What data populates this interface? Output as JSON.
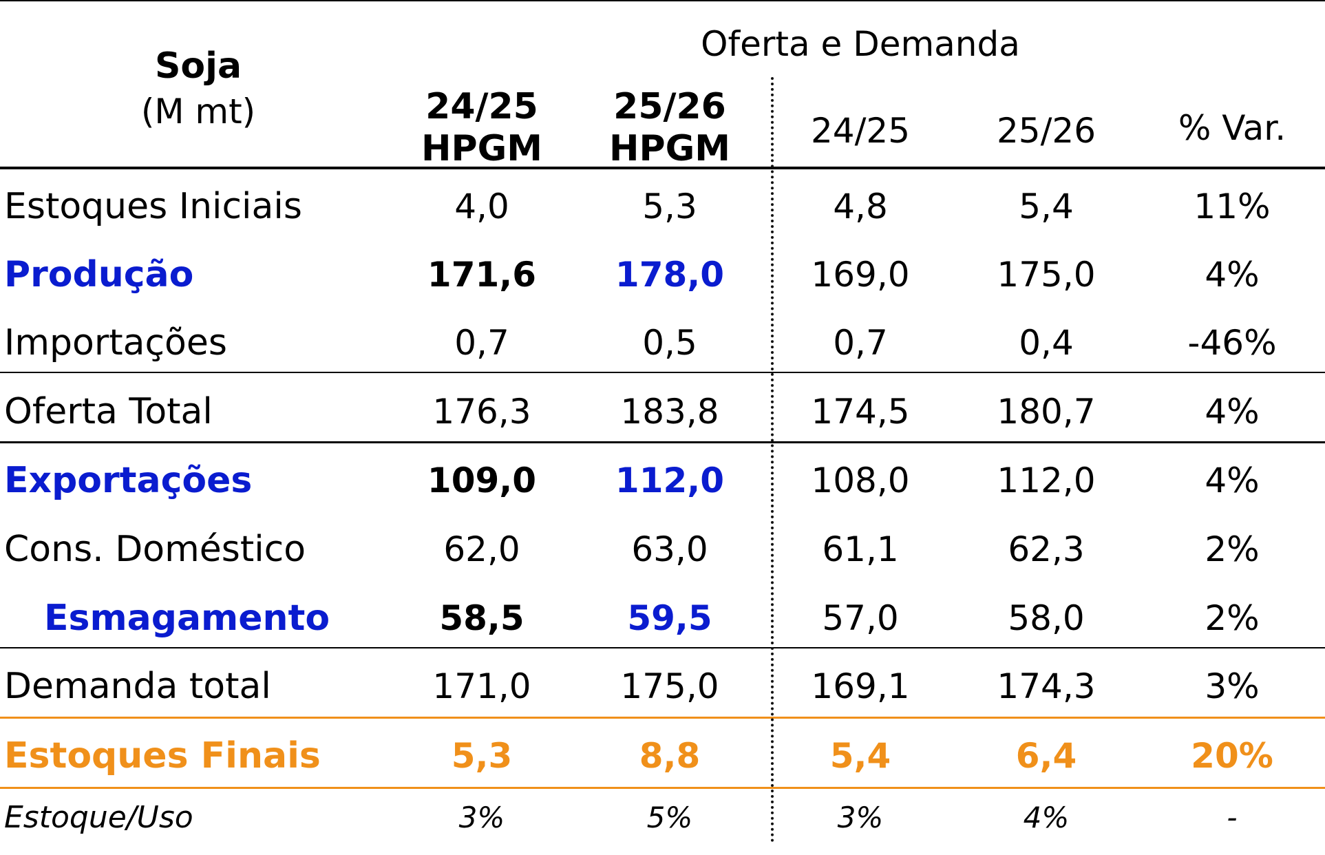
{
  "header": {
    "commodity": "Soja",
    "unit": "(M mt)",
    "group_title": "Oferta e Demanda",
    "hpgm": [
      {
        "year": "24/25",
        "source": "HPGM"
      },
      {
        "year": "25/26",
        "source": "HPGM"
      }
    ],
    "other": [
      "24/25",
      "25/26",
      "% Var."
    ]
  },
  "colors": {
    "accent_blue": "#0a1ccf",
    "accent_orange": "#f0901a",
    "text": "#000000"
  },
  "rows": [
    {
      "label": "Estoques Iniciais",
      "values": [
        "4,0",
        "5,3",
        "4,8",
        "5,4",
        "11%"
      ]
    },
    {
      "label": "Produção",
      "values": [
        "171,6",
        "178,0",
        "169,0",
        "175,0",
        "4%"
      ]
    },
    {
      "label": "Importações",
      "values": [
        "0,7",
        "0,5",
        "0,7",
        "0,4",
        "-46%"
      ]
    },
    {
      "label": "Oferta Total",
      "values": [
        "176,3",
        "183,8",
        "174,5",
        "180,7",
        "4%"
      ]
    },
    {
      "label": "Exportações",
      "values": [
        "109,0",
        "112,0",
        "108,0",
        "112,0",
        "4%"
      ]
    },
    {
      "label": "Cons. Doméstico",
      "values": [
        "62,0",
        "63,0",
        "61,1",
        "62,3",
        "2%"
      ]
    },
    {
      "label": "Esmagamento",
      "values": [
        "58,5",
        "59,5",
        "57,0",
        "58,0",
        "2%"
      ]
    },
    {
      "label": "Demanda total",
      "values": [
        "171,0",
        "175,0",
        "169,1",
        "174,3",
        "3%"
      ]
    },
    {
      "label": "Estoques Finais",
      "values": [
        "5,3",
        "8,8",
        "5,4",
        "6,4",
        "20%"
      ]
    },
    {
      "label": "Estoque/Uso",
      "values": [
        "3%",
        "5%",
        "3%",
        "4%",
        "-"
      ]
    }
  ]
}
